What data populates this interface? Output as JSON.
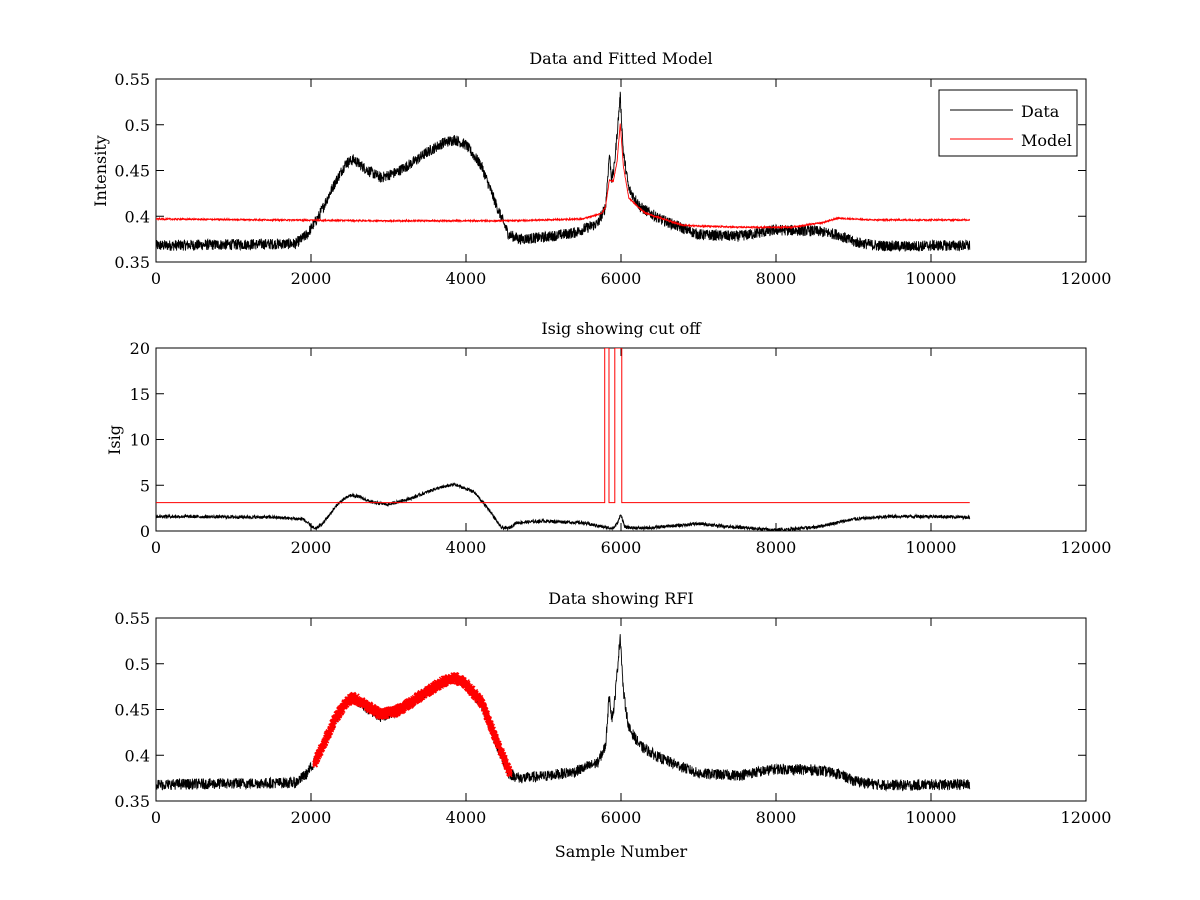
{
  "chart_data": [
    {
      "type": "line",
      "title": "Data and Fitted Model",
      "xlabel": "",
      "ylabel": "Intensity",
      "xlim": [
        0,
        12000
      ],
      "ylim": [
        0.35,
        0.55
      ],
      "xticks": [
        0,
        2000,
        4000,
        6000,
        8000,
        10000,
        12000
      ],
      "yticks": [
        0.35,
        0.4,
        0.45,
        0.5,
        0.55
      ],
      "xtick_labels": [
        "0",
        "2000",
        "4000",
        "6000",
        "8000",
        "10000",
        "12000"
      ],
      "ytick_labels": [
        "0.35",
        "0.4",
        "0.45",
        "0.5",
        "0.55"
      ],
      "grid": false,
      "legend": {
        "position": "top-right",
        "entries": [
          "Data",
          "Model"
        ]
      },
      "series": [
        {
          "name": "Data",
          "color": "#000000",
          "noise": 0.006,
          "x": [
            0,
            1800,
            1950,
            2100,
            2300,
            2450,
            2550,
            2700,
            2900,
            3100,
            3300,
            3500,
            3700,
            3850,
            4000,
            4200,
            4400,
            4550,
            4700,
            5000,
            5400,
            5700,
            5800,
            5850,
            5880,
            5910,
            5950,
            5990,
            6030,
            6100,
            6250,
            6500,
            7000,
            7500,
            8000,
            8500,
            8800,
            9000,
            9300,
            9700,
            10000,
            10500
          ],
          "y": [
            0.368,
            0.37,
            0.38,
            0.4,
            0.435,
            0.458,
            0.462,
            0.452,
            0.442,
            0.448,
            0.458,
            0.47,
            0.48,
            0.484,
            0.478,
            0.455,
            0.41,
            0.38,
            0.375,
            0.377,
            0.382,
            0.392,
            0.41,
            0.468,
            0.44,
            0.452,
            0.49,
            0.532,
            0.47,
            0.43,
            0.41,
            0.397,
            0.38,
            0.378,
            0.385,
            0.384,
            0.38,
            0.372,
            0.368,
            0.367,
            0.368,
            0.368
          ]
        },
        {
          "name": "Model",
          "color": "#ff0000",
          "noise": 0.0008,
          "x": [
            0,
            1500,
            3000,
            4500,
            5500,
            5750,
            5800,
            5850,
            5900,
            5950,
            5990,
            6030,
            6100,
            6300,
            6800,
            7500,
            8200,
            8600,
            8800,
            9200,
            10000,
            10500
          ],
          "y": [
            0.397,
            0.396,
            0.395,
            0.395,
            0.397,
            0.403,
            0.41,
            0.44,
            0.438,
            0.46,
            0.502,
            0.455,
            0.42,
            0.404,
            0.39,
            0.388,
            0.388,
            0.393,
            0.398,
            0.396,
            0.396,
            0.396
          ]
        }
      ]
    },
    {
      "type": "line",
      "title": "Isig showing cut off",
      "xlabel": "",
      "ylabel": "Isig",
      "xlim": [
        0,
        12000
      ],
      "ylim": [
        0,
        20
      ],
      "xticks": [
        0,
        2000,
        4000,
        6000,
        8000,
        10000,
        12000
      ],
      "yticks": [
        0,
        5,
        10,
        15,
        20
      ],
      "xtick_labels": [
        "0",
        "2000",
        "4000",
        "6000",
        "8000",
        "10000",
        "12000"
      ],
      "ytick_labels": [
        "0",
        "5",
        "10",
        "15",
        "20"
      ],
      "grid": false,
      "series": [
        {
          "name": "Isig",
          "color": "#000000",
          "noise": 0.18,
          "x": [
            0,
            1500,
            1900,
            2050,
            2150,
            2350,
            2500,
            2600,
            2800,
            3000,
            3300,
            3600,
            3850,
            4100,
            4300,
            4450,
            4550,
            4650,
            5000,
            5500,
            5800,
            5900,
            5950,
            6000,
            6050,
            6300,
            7000,
            7500,
            8000,
            8500,
            9000,
            9500,
            10000,
            10500
          ],
          "y": [
            1.6,
            1.5,
            1.3,
            0.2,
            0.8,
            3.0,
            3.9,
            3.8,
            3.1,
            2.9,
            3.6,
            4.6,
            5.1,
            4.3,
            2.3,
            0.4,
            0.3,
            0.9,
            1.1,
            0.9,
            0.4,
            0.3,
            0.8,
            1.8,
            0.4,
            0.3,
            0.8,
            0.4,
            0.1,
            0.4,
            1.3,
            1.6,
            1.6,
            1.5
          ]
        },
        {
          "name": "Cut off",
          "color": "#ff0000",
          "noise": 0,
          "step": true,
          "x": [
            0,
            5790,
            5790,
            5845,
            5845,
            5920,
            5920,
            6010,
            6010,
            10500
          ],
          "y": [
            3.1,
            3.1,
            20,
            20,
            3.1,
            3.1,
            20,
            20,
            3.1,
            3.1
          ]
        }
      ]
    },
    {
      "type": "line",
      "title": "Data showing RFI",
      "xlabel": "Sample Number",
      "ylabel": "",
      "xlim": [
        0,
        12000
      ],
      "ylim": [
        0.35,
        0.55
      ],
      "xticks": [
        0,
        2000,
        4000,
        6000,
        8000,
        10000,
        12000
      ],
      "yticks": [
        0.35,
        0.4,
        0.45,
        0.5,
        0.55
      ],
      "xtick_labels": [
        "0",
        "2000",
        "4000",
        "6000",
        "8000",
        "10000",
        "12000"
      ],
      "ytick_labels": [
        "0.35",
        "0.4",
        "0.45",
        "0.5",
        "0.55"
      ],
      "grid": false,
      "series": [
        {
          "name": "Data",
          "color": "#000000",
          "noise": 0.006,
          "x": [
            0,
            1800,
            1950,
            2100,
            2300,
            2450,
            2550,
            2700,
            2900,
            3100,
            3300,
            3500,
            3700,
            3850,
            4000,
            4200,
            4400,
            4550,
            4700,
            5000,
            5400,
            5700,
            5800,
            5850,
            5880,
            5910,
            5950,
            5990,
            6030,
            6100,
            6250,
            6500,
            7000,
            7500,
            8000,
            8500,
            8800,
            9000,
            9300,
            9700,
            10000,
            10500
          ],
          "y": [
            0.368,
            0.37,
            0.38,
            0.4,
            0.435,
            0.458,
            0.462,
            0.452,
            0.442,
            0.448,
            0.458,
            0.47,
            0.48,
            0.484,
            0.478,
            0.455,
            0.41,
            0.38,
            0.375,
            0.377,
            0.382,
            0.392,
            0.41,
            0.468,
            0.44,
            0.452,
            0.49,
            0.532,
            0.47,
            0.43,
            0.41,
            0.397,
            0.38,
            0.378,
            0.385,
            0.384,
            0.38,
            0.372,
            0.368,
            0.367,
            0.368,
            0.368
          ]
        },
        {
          "name": "RFI",
          "color": "#ff0000",
          "marker": "x",
          "noise": 0.004,
          "x": [
            2050,
            2150,
            2300,
            2450,
            2550,
            2700,
            2900,
            3100,
            3300,
            3500,
            3700,
            3850,
            4000,
            4200,
            4400,
            4570
          ],
          "y": [
            0.392,
            0.41,
            0.438,
            0.458,
            0.463,
            0.455,
            0.445,
            0.448,
            0.458,
            0.47,
            0.48,
            0.485,
            0.478,
            0.458,
            0.415,
            0.38
          ]
        }
      ]
    }
  ]
}
